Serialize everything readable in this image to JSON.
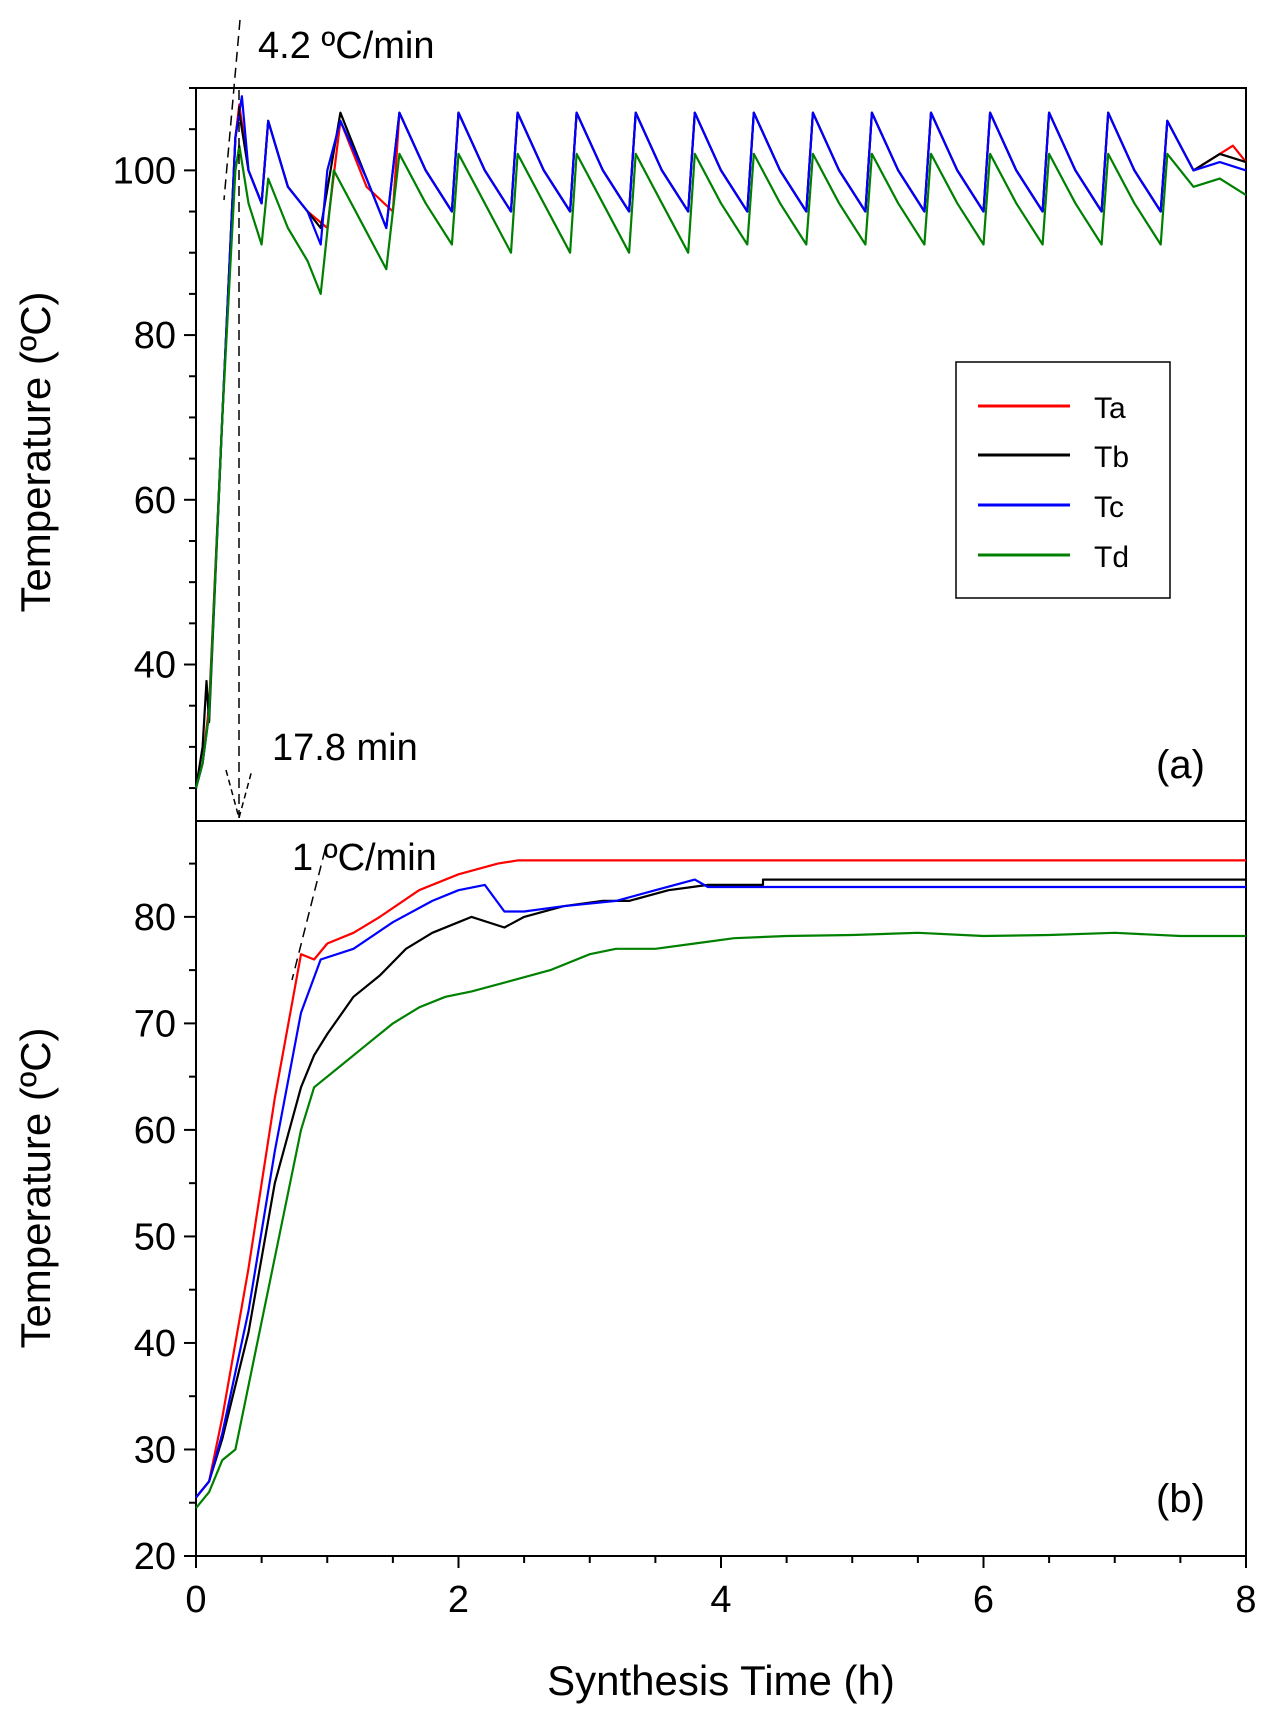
{
  "chart_data": [
    {
      "type": "line",
      "panel_label": "(a)",
      "ylabel": "Temperature (ºC)",
      "xlabel": "",
      "xlim": [
        0,
        8
      ],
      "ylim": [
        21,
        110
      ],
      "yticks": [
        40,
        60,
        80,
        100
      ],
      "ytick_labels": [
        "40",
        "60",
        "80",
        "100"
      ],
      "annotations": {
        "rate": "4.2 ºC/min",
        "time": "17.8 min"
      },
      "legend": {
        "position": "right-middle",
        "entries": [
          "Ta",
          "Tb",
          "Tc",
          "Td"
        ]
      },
      "series": [
        {
          "name": "Ta",
          "color": "#ff0000",
          "x": [
            0,
            0.05,
            0.1,
            0.2,
            0.3,
            0.33,
            0.4,
            0.5,
            0.55,
            0.7,
            0.85,
            1.0,
            1.1,
            1.3,
            1.5,
            1.55,
            1.75,
            1.95,
            2.0,
            2.2,
            2.4,
            2.45,
            2.65,
            2.85,
            2.9,
            3.1,
            3.3,
            3.35,
            3.55,
            3.75,
            3.8,
            4.0,
            4.2,
            4.25,
            4.45,
            4.65,
            4.7,
            4.9,
            5.1,
            5.15,
            5.35,
            5.55,
            5.6,
            5.8,
            6.0,
            6.05,
            6.25,
            6.45,
            6.5,
            6.7,
            6.9,
            6.95,
            7.15,
            7.35,
            7.4,
            7.6,
            7.8,
            7.9,
            8.0
          ],
          "y": [
            25,
            28,
            35,
            70,
            104,
            108,
            100,
            96,
            106,
            98,
            95,
            93,
            106,
            98,
            95,
            107,
            100,
            95,
            107,
            100,
            95,
            107,
            100,
            95,
            107,
            100,
            95,
            107,
            100,
            95,
            107,
            100,
            95,
            107,
            100,
            95,
            107,
            100,
            95,
            107,
            100,
            95,
            107,
            100,
            95,
            107,
            100,
            95,
            107,
            100,
            95,
            107,
            100,
            95,
            106,
            100,
            102,
            103,
            101
          ]
        },
        {
          "name": "Tb",
          "color": "#000000",
          "x": [
            0,
            0.05,
            0.08,
            0.1,
            0.2,
            0.3,
            0.33,
            0.4,
            0.5,
            0.55,
            0.7,
            0.85,
            0.95,
            1.1,
            1.3,
            1.45,
            1.55,
            1.75,
            1.95,
            2.0,
            2.2,
            2.4,
            2.45,
            2.65,
            2.85,
            2.9,
            3.1,
            3.3,
            3.35,
            3.55,
            3.75,
            3.8,
            4.0,
            4.2,
            4.25,
            4.45,
            4.65,
            4.7,
            4.9,
            5.1,
            5.15,
            5.35,
            5.55,
            5.6,
            5.8,
            6.0,
            6.05,
            6.25,
            6.45,
            6.5,
            6.7,
            6.9,
            6.95,
            7.15,
            7.35,
            7.4,
            7.6,
            7.8,
            8.0
          ],
          "y": [
            25,
            30,
            38,
            33,
            70,
            104,
            107,
            100,
            96,
            106,
            98,
            95,
            93,
            107,
            99,
            93,
            107,
            100,
            95,
            107,
            100,
            95,
            107,
            100,
            95,
            107,
            100,
            95,
            107,
            100,
            95,
            107,
            100,
            95,
            107,
            100,
            95,
            107,
            100,
            95,
            107,
            100,
            95,
            107,
            100,
            95,
            107,
            100,
            95,
            107,
            100,
            95,
            107,
            100,
            95,
            106,
            100,
            102,
            101
          ]
        },
        {
          "name": "Tc",
          "color": "#0000ff",
          "x": [
            0,
            0.05,
            0.1,
            0.2,
            0.3,
            0.35,
            0.4,
            0.5,
            0.55,
            0.7,
            0.85,
            0.95,
            1.0,
            1.1,
            1.3,
            1.45,
            1.55,
            1.75,
            1.95,
            2.0,
            2.2,
            2.4,
            2.45,
            2.65,
            2.85,
            2.9,
            3.1,
            3.3,
            3.35,
            3.55,
            3.75,
            3.8,
            4.0,
            4.2,
            4.25,
            4.45,
            4.65,
            4.7,
            4.9,
            5.1,
            5.15,
            5.35,
            5.55,
            5.6,
            5.8,
            6.0,
            6.05,
            6.25,
            6.45,
            6.5,
            6.7,
            6.9,
            6.95,
            7.15,
            7.35,
            7.4,
            7.6,
            7.8,
            8.0
          ],
          "y": [
            25,
            28,
            34,
            70,
            104,
            109,
            100,
            96,
            106,
            98,
            95,
            91,
            100,
            106,
            99,
            93,
            107,
            100,
            95,
            107,
            100,
            95,
            107,
            100,
            95,
            107,
            100,
            95,
            107,
            100,
            95,
            107,
            100,
            95,
            107,
            100,
            95,
            107,
            100,
            95,
            107,
            100,
            95,
            107,
            100,
            95,
            107,
            100,
            95,
            107,
            100,
            95,
            107,
            100,
            95,
            106,
            100,
            101,
            100
          ]
        },
        {
          "name": "Td",
          "color": "#008000",
          "x": [
            0,
            0.05,
            0.1,
            0.2,
            0.3,
            0.33,
            0.4,
            0.5,
            0.55,
            0.7,
            0.85,
            0.95,
            1.05,
            1.25,
            1.45,
            1.55,
            1.75,
            1.95,
            2.0,
            2.2,
            2.4,
            2.45,
            2.65,
            2.85,
            2.9,
            3.1,
            3.3,
            3.35,
            3.55,
            3.75,
            3.8,
            4.0,
            4.2,
            4.25,
            4.45,
            4.65,
            4.7,
            4.9,
            5.1,
            5.15,
            5.35,
            5.55,
            5.6,
            5.8,
            6.0,
            6.05,
            6.25,
            6.45,
            6.5,
            6.7,
            6.9,
            6.95,
            7.15,
            7.35,
            7.4,
            7.6,
            7.8,
            8.0
          ],
          "y": [
            25,
            28,
            34,
            70,
            100,
            103,
            96,
            91,
            99,
            93,
            89,
            85,
            100,
            94,
            88,
            102,
            96,
            91,
            102,
            96,
            90,
            102,
            96,
            90,
            102,
            96,
            90,
            102,
            96,
            90,
            102,
            96,
            91,
            102,
            96,
            91,
            102,
            96,
            91,
            102,
            96,
            91,
            102,
            96,
            91,
            102,
            96,
            91,
            102,
            96,
            91,
            102,
            96,
            91,
            102,
            98,
            99,
            97
          ]
        }
      ]
    },
    {
      "type": "line",
      "panel_label": "(b)",
      "ylabel": "Temperature (ºC)",
      "xlabel": "Synthesis Time (h)",
      "xlim": [
        0,
        8
      ],
      "ylim": [
        20,
        89
      ],
      "xticks": [
        0,
        2,
        4,
        6,
        8
      ],
      "xtick_labels": [
        "0",
        "2",
        "4",
        "6",
        "8"
      ],
      "yticks": [
        20,
        30,
        40,
        50,
        60,
        70,
        80
      ],
      "ytick_labels": [
        "20",
        "30",
        "40",
        "50",
        "60",
        "70",
        "80"
      ],
      "annotations": {
        "rate": "1 ºC/min"
      },
      "series": [
        {
          "name": "Ta",
          "color": "#ff0000",
          "x": [
            0,
            0.1,
            0.2,
            0.4,
            0.6,
            0.8,
            0.9,
            1.0,
            1.2,
            1.4,
            1.7,
            2.0,
            2.3,
            2.45,
            3.0,
            4.0,
            5.0,
            6.0,
            7.0,
            8.0
          ],
          "y": [
            25.5,
            27,
            33,
            47,
            63,
            76.5,
            76,
            77.5,
            78.5,
            80,
            82.5,
            84,
            85,
            85.3,
            85.3,
            85.3,
            85.3,
            85.3,
            85.3,
            85.3
          ]
        },
        {
          "name": "Tb",
          "color": "#000000",
          "x": [
            0,
            0.1,
            0.2,
            0.4,
            0.6,
            0.8,
            0.9,
            1.0,
            1.2,
            1.4,
            1.6,
            1.8,
            2.0,
            2.1,
            2.35,
            2.5,
            2.8,
            3.1,
            3.3,
            3.6,
            3.9,
            4.1,
            4.32,
            4.32,
            5.0,
            6.0,
            7.0,
            8.0
          ],
          "y": [
            25.5,
            27,
            31,
            41,
            55,
            64,
            67,
            69,
            72.5,
            74.5,
            77,
            78.5,
            79.5,
            80,
            79,
            80,
            81,
            81.5,
            81.5,
            82.5,
            83,
            83,
            83,
            83.5,
            83.5,
            83.5,
            83.5,
            83.5
          ]
        },
        {
          "name": "Tc",
          "color": "#0000ff",
          "x": [
            0,
            0.1,
            0.2,
            0.4,
            0.6,
            0.8,
            0.95,
            1.2,
            1.5,
            1.8,
            2.0,
            2.2,
            2.35,
            2.5,
            2.8,
            3.2,
            3.5,
            3.8,
            3.9,
            4.2,
            5.0,
            6.0,
            7.0,
            8.0
          ],
          "y": [
            25.5,
            27,
            31.5,
            43,
            58,
            71,
            76,
            77,
            79.5,
            81.5,
            82.5,
            83,
            80.5,
            80.5,
            81,
            81.5,
            82.5,
            83.5,
            82.8,
            82.8,
            82.8,
            82.8,
            82.8,
            82.8
          ]
        },
        {
          "name": "Td",
          "color": "#008000",
          "x": [
            0,
            0.1,
            0.2,
            0.3,
            0.4,
            0.6,
            0.8,
            0.9,
            1.1,
            1.3,
            1.5,
            1.7,
            1.9,
            2.1,
            2.4,
            2.7,
            3.0,
            3.2,
            3.5,
            3.8,
            4.1,
            4.5,
            5.0,
            5.5,
            6.0,
            6.5,
            7.0,
            7.5,
            8.0
          ],
          "y": [
            24.5,
            26,
            29,
            30,
            36,
            48,
            60,
            64,
            66,
            68,
            70,
            71.5,
            72.5,
            73,
            74,
            75,
            76.5,
            77,
            77,
            77.5,
            78,
            78.2,
            78.3,
            78.5,
            78.2,
            78.3,
            78.5,
            78.2,
            78.2
          ]
        }
      ]
    }
  ]
}
